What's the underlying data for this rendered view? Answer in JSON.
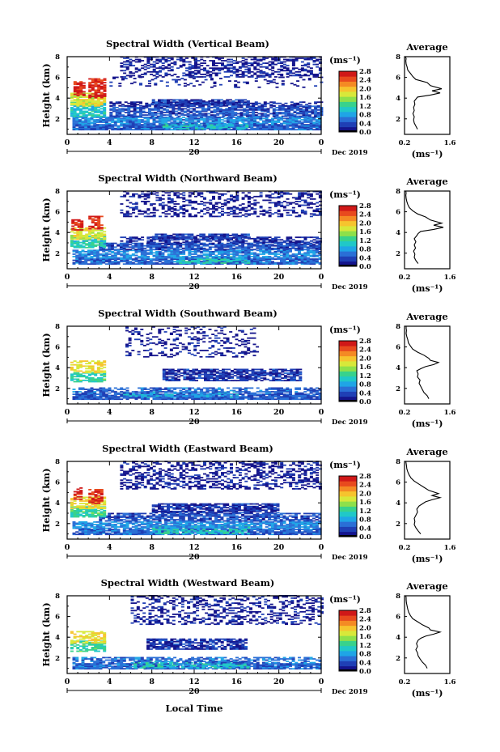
{
  "colors": {
    "colormap": [
      "#14148c",
      "#1f3fb5",
      "#2a6fd6",
      "#1fa5e6",
      "#20c8c8",
      "#38d28c",
      "#8ee04a",
      "#d8e83a",
      "#f6c42e",
      "#f48a24",
      "#e84a1e",
      "#d01818"
    ],
    "background": "#ffffff",
    "axis": "#000000"
  },
  "shared": {
    "xlabel": "Local Time",
    "date_label": "20",
    "month_year_label": "Dec 2019",
    "ylabel": "Height (km)",
    "unit_label": "(ms⁻¹)",
    "avg_title": "Average",
    "avg_xlabel": "(ms⁻¹)"
  },
  "chart_data": [
    {
      "type": "heatmap",
      "title": "Spectral Width (Vertical Beam)",
      "xlabel": "",
      "ylabel": "Height (km)",
      "x_ticks": [
        "0",
        "4",
        "8",
        "12",
        "16",
        "20",
        "0"
      ],
      "xlim": [
        0,
        24
      ],
      "y_ticks": [
        "2",
        "4",
        "6",
        "8"
      ],
      "ylim": [
        0.5,
        8
      ],
      "colorbar": {
        "label": "(ms⁻¹)",
        "ticks": [
          "0.0",
          "0.4",
          "0.8",
          "1.2",
          "1.6",
          "2.0",
          "2.4",
          "2.8"
        ],
        "range": [
          0,
          3.0
        ]
      },
      "features": [
        {
          "t0": 0.5,
          "t1": 24,
          "h0": 0.9,
          "h1": 1.5,
          "value": 0.55,
          "density": 0.95
        },
        {
          "t0": 9,
          "t1": 17,
          "h0": 1.0,
          "h1": 1.5,
          "value": 1.1,
          "density": 0.6
        },
        {
          "t0": 0.5,
          "t1": 24,
          "h0": 1.5,
          "h1": 2.2,
          "value": 0.7,
          "density": 0.85
        },
        {
          "t0": 4,
          "t1": 24,
          "h0": 2.2,
          "h1": 3.2,
          "value": 0.45,
          "density": 0.75
        },
        {
          "t0": 4,
          "t1": 24,
          "h0": 3.2,
          "h1": 3.6,
          "value": 0.2,
          "density": 0.55
        },
        {
          "t0": 8,
          "t1": 17,
          "h0": 3.3,
          "h1": 3.9,
          "value": 0.35,
          "density": 0.8
        },
        {
          "t0": 0.3,
          "t1": 3.5,
          "h0": 2.2,
          "h1": 3.6,
          "value": 1.1,
          "density": 0.85
        },
        {
          "t0": 0.3,
          "t1": 3.5,
          "h0": 3.2,
          "h1": 4.5,
          "value": 1.9,
          "density": 0.8
        },
        {
          "t0": 0.6,
          "t1": 1.6,
          "h0": 4.2,
          "h1": 5.6,
          "value": 2.8,
          "density": 0.7
        },
        {
          "t0": 2.0,
          "t1": 3.5,
          "h0": 4.0,
          "h1": 5.9,
          "value": 2.8,
          "density": 0.75
        },
        {
          "t0": 5,
          "t1": 24,
          "h0": 6.0,
          "h1": 8.0,
          "value": 0.15,
          "density": 0.45
        },
        {
          "t0": 4,
          "t1": 24,
          "h0": 5.0,
          "h1": 6.0,
          "value": 0.15,
          "density": 0.15
        }
      ],
      "average": {
        "xlim": [
          0.2,
          1.6
        ],
        "x_ticks": [
          "0.2",
          "1.6"
        ],
        "y_ticks": [
          "2",
          "4",
          "6",
          "8"
        ],
        "ylim": [
          0.5,
          8
        ],
        "x": [
          0.6,
          0.55,
          0.5,
          0.48,
          0.5,
          0.46,
          0.5,
          0.48,
          0.52,
          0.5,
          0.55,
          0.6,
          1.0,
          1.3,
          1.05,
          1.35,
          1.0,
          0.9,
          0.55,
          0.45,
          0.38,
          0.3,
          0.28,
          0.25,
          0.24,
          0.25,
          0.23,
          0.24
        ],
        "y": [
          1.0,
          1.3,
          1.6,
          1.9,
          2.2,
          2.5,
          2.8,
          3.1,
          3.4,
          3.7,
          3.9,
          4.1,
          4.3,
          4.5,
          4.7,
          4.9,
          5.2,
          5.5,
          5.8,
          6.1,
          6.4,
          6.7,
          7.0,
          7.3,
          7.6,
          7.8,
          8.0,
          8.0
        ]
      }
    },
    {
      "type": "heatmap",
      "title": "Spectral Width (Northward Beam)",
      "xlabel": "",
      "ylabel": "Height (km)",
      "x_ticks": [
        "0",
        "4",
        "8",
        "12",
        "16",
        "20",
        "0"
      ],
      "xlim": [
        0,
        24
      ],
      "y_ticks": [
        "2",
        "4",
        "6",
        "8"
      ],
      "ylim": [
        0.5,
        8
      ],
      "colorbar": {
        "label": "(ms⁻¹)",
        "ticks": [
          "0.0",
          "0.4",
          "0.8",
          "1.2",
          "1.6",
          "2.0",
          "2.4",
          "2.8"
        ],
        "range": [
          0,
          3.0
        ]
      },
      "features": [
        {
          "t0": 0.5,
          "t1": 24,
          "h0": 0.9,
          "h1": 1.5,
          "value": 0.55,
          "density": 0.9
        },
        {
          "t0": 10,
          "t1": 17,
          "h0": 1.0,
          "h1": 1.7,
          "value": 1.2,
          "density": 0.6
        },
        {
          "t0": 0.5,
          "t1": 24,
          "h0": 1.5,
          "h1": 2.3,
          "value": 0.7,
          "density": 0.8
        },
        {
          "t0": 3,
          "t1": 24,
          "h0": 2.3,
          "h1": 3.0,
          "value": 0.45,
          "density": 0.8
        },
        {
          "t0": 5,
          "t1": 24,
          "h0": 3.0,
          "h1": 3.5,
          "value": 0.25,
          "density": 0.6
        },
        {
          "t0": 8,
          "t1": 17,
          "h0": 3.3,
          "h1": 3.8,
          "value": 0.35,
          "density": 0.8
        },
        {
          "t0": 0.3,
          "t1": 3.5,
          "h0": 2.5,
          "h1": 3.6,
          "value": 1.2,
          "density": 0.8
        },
        {
          "t0": 0.3,
          "t1": 3.5,
          "h0": 3.3,
          "h1": 4.4,
          "value": 1.9,
          "density": 0.75
        },
        {
          "t0": 0.4,
          "t1": 1.4,
          "h0": 4.2,
          "h1": 5.2,
          "value": 2.8,
          "density": 0.7
        },
        {
          "t0": 2.0,
          "t1": 3.2,
          "h0": 4.3,
          "h1": 5.6,
          "value": 2.8,
          "density": 0.65
        },
        {
          "t0": 5,
          "t1": 24,
          "h0": 5.5,
          "h1": 8.0,
          "value": 0.15,
          "density": 0.35
        }
      ],
      "average": {
        "xlim": [
          0.2,
          1.6
        ],
        "x_ticks": [
          "0.2",
          "1.6"
        ],
        "y_ticks": [
          "2",
          "4",
          "6",
          "8"
        ],
        "ylim": [
          0.5,
          8
        ],
        "x": [
          0.62,
          0.55,
          0.5,
          0.52,
          0.48,
          0.54,
          0.5,
          0.55,
          0.5,
          0.58,
          0.62,
          0.7,
          1.1,
          1.4,
          1.1,
          1.35,
          1.0,
          0.85,
          0.6,
          0.45,
          0.35,
          0.3,
          0.27,
          0.25,
          0.24,
          0.25,
          0.24,
          0.24
        ],
        "y": [
          1.0,
          1.3,
          1.6,
          1.9,
          2.2,
          2.5,
          2.8,
          3.1,
          3.4,
          3.7,
          3.9,
          4.1,
          4.3,
          4.5,
          4.7,
          4.9,
          5.2,
          5.5,
          5.8,
          6.1,
          6.4,
          6.7,
          7.0,
          7.3,
          7.6,
          7.8,
          8.0,
          8.0
        ]
      }
    },
    {
      "type": "heatmap",
      "title": "Spectral Width (Southward Beam)",
      "xlabel": "",
      "ylabel": "Height (km)",
      "x_ticks": [
        "0",
        "4",
        "8",
        "12",
        "16",
        "20",
        "0"
      ],
      "xlim": [
        0,
        24
      ],
      "y_ticks": [
        "2",
        "4",
        "6",
        "8"
      ],
      "ylim": [
        0.5,
        8
      ],
      "colorbar": {
        "label": "(ms⁻¹)",
        "ticks": [
          "0.0",
          "0.4",
          "0.8",
          "1.2",
          "1.6",
          "2.0",
          "2.4",
          "2.8"
        ],
        "range": [
          0,
          3.0
        ]
      },
      "features": [
        {
          "t0": 0.5,
          "t1": 24,
          "h0": 0.9,
          "h1": 1.5,
          "value": 0.5,
          "density": 0.9
        },
        {
          "t0": 5,
          "t1": 16,
          "h0": 1.1,
          "h1": 1.6,
          "value": 0.9,
          "density": 0.6
        },
        {
          "t0": 0.5,
          "t1": 24,
          "h0": 1.5,
          "h1": 2.0,
          "value": 0.55,
          "density": 0.6
        },
        {
          "t0": 9,
          "t1": 22,
          "h0": 2.7,
          "h1": 3.9,
          "value": 0.3,
          "density": 0.75
        },
        {
          "t0": 0.3,
          "t1": 3.5,
          "h0": 2.6,
          "h1": 3.5,
          "value": 1.3,
          "density": 0.7
        },
        {
          "t0": 0.3,
          "t1": 3.5,
          "h0": 3.5,
          "h1": 4.6,
          "value": 2.0,
          "density": 0.6
        },
        {
          "t0": 5.5,
          "t1": 18,
          "h0": 5.0,
          "h1": 8.0,
          "value": 0.15,
          "density": 0.25
        }
      ],
      "average": {
        "xlim": [
          0.2,
          1.6
        ],
        "x_ticks": [
          "0.2",
          "1.6"
        ],
        "y_ticks": [
          "2",
          "4",
          "6",
          "8"
        ],
        "ylim": [
          0.5,
          8
        ],
        "x": [
          0.95,
          0.9,
          0.8,
          0.75,
          0.7,
          0.65,
          0.68,
          0.6,
          0.62,
          0.58,
          0.7,
          0.85,
          1.1,
          1.25,
          1.0,
          0.95,
          0.8,
          0.6,
          0.45,
          0.38,
          0.32,
          0.3,
          0.27,
          0.25,
          0.26,
          0.25,
          0.25,
          0.25
        ],
        "y": [
          1.0,
          1.3,
          1.6,
          1.9,
          2.2,
          2.5,
          2.8,
          3.1,
          3.4,
          3.7,
          3.9,
          4.1,
          4.3,
          4.5,
          4.7,
          4.9,
          5.2,
          5.5,
          5.8,
          6.1,
          6.4,
          6.7,
          7.0,
          7.3,
          7.6,
          7.8,
          8.0,
          8.0
        ]
      }
    },
    {
      "type": "heatmap",
      "title": "Spectral Width (Eastward Beam)",
      "xlabel": "",
      "ylabel": "Height (km)",
      "x_ticks": [
        "0",
        "4",
        "8",
        "12",
        "16",
        "20",
        "0"
      ],
      "xlim": [
        0,
        24
      ],
      "y_ticks": [
        "2",
        "4",
        "6",
        "8"
      ],
      "ylim": [
        0.5,
        8
      ],
      "colorbar": {
        "label": "(ms⁻¹)",
        "ticks": [
          "0.0",
          "0.4",
          "0.8",
          "1.2",
          "1.6",
          "2.0",
          "2.4",
          "2.8"
        ],
        "range": [
          0,
          3.0
        ]
      },
      "features": [
        {
          "t0": 0.5,
          "t1": 24,
          "h0": 0.9,
          "h1": 1.5,
          "value": 0.55,
          "density": 0.9
        },
        {
          "t0": 8,
          "t1": 17,
          "h0": 1.0,
          "h1": 1.8,
          "value": 1.2,
          "density": 0.6
        },
        {
          "t0": 0.5,
          "t1": 24,
          "h0": 1.5,
          "h1": 2.2,
          "value": 0.75,
          "density": 0.8
        },
        {
          "t0": 3,
          "t1": 24,
          "h0": 2.2,
          "h1": 3.0,
          "value": 0.45,
          "density": 0.75
        },
        {
          "t0": 8,
          "t1": 20,
          "h0": 3.0,
          "h1": 3.9,
          "value": 0.3,
          "density": 0.75
        },
        {
          "t0": 0.3,
          "t1": 3.5,
          "h0": 2.6,
          "h1": 3.6,
          "value": 1.3,
          "density": 0.8
        },
        {
          "t0": 0.3,
          "t1": 3.5,
          "h0": 3.4,
          "h1": 4.6,
          "value": 2.0,
          "density": 0.75
        },
        {
          "t0": 0.6,
          "t1": 1.4,
          "h0": 4.3,
          "h1": 5.5,
          "value": 2.8,
          "density": 0.6
        },
        {
          "t0": 2.0,
          "t1": 3.3,
          "h0": 3.9,
          "h1": 5.3,
          "value": 2.8,
          "density": 0.7
        },
        {
          "t0": 5,
          "t1": 24,
          "h0": 5.3,
          "h1": 8.0,
          "value": 0.15,
          "density": 0.4
        }
      ],
      "average": {
        "xlim": [
          0.2,
          1.6
        ],
        "x_ticks": [
          "0.2",
          "1.6"
        ],
        "y_ticks": [
          "2",
          "4",
          "6",
          "8"
        ],
        "ylim": [
          0.5,
          8
        ],
        "x": [
          0.7,
          0.62,
          0.55,
          0.5,
          0.52,
          0.5,
          0.55,
          0.6,
          0.58,
          0.65,
          0.75,
          0.85,
          1.05,
          1.3,
          1.05,
          1.25,
          0.95,
          0.8,
          0.65,
          0.5,
          0.4,
          0.34,
          0.3,
          0.27,
          0.26,
          0.25,
          0.24,
          0.24
        ],
        "y": [
          1.0,
          1.3,
          1.6,
          1.9,
          2.2,
          2.5,
          2.8,
          3.1,
          3.4,
          3.7,
          3.9,
          4.1,
          4.3,
          4.5,
          4.7,
          4.9,
          5.2,
          5.5,
          5.8,
          6.1,
          6.4,
          6.7,
          7.0,
          7.3,
          7.6,
          7.8,
          8.0,
          8.0
        ]
      }
    },
    {
      "type": "heatmap",
      "title": "Spectral Width (Westward Beam)",
      "xlabel": "Local Time",
      "ylabel": "Height (km)",
      "x_ticks": [
        "0",
        "4",
        "8",
        "12",
        "16",
        "20",
        "0"
      ],
      "xlim": [
        0,
        24
      ],
      "y_ticks": [
        "2",
        "4",
        "6",
        "8"
      ],
      "ylim": [
        0.5,
        8
      ],
      "colorbar": {
        "label": "(ms⁻¹)",
        "ticks": [
          "0.0",
          "0.4",
          "0.8",
          "1.2",
          "1.6",
          "2.0",
          "2.4",
          "2.8"
        ],
        "range": [
          0,
          3.0
        ]
      },
      "features": [
        {
          "t0": 0.5,
          "t1": 24,
          "h0": 0.9,
          "h1": 1.5,
          "value": 0.55,
          "density": 0.9
        },
        {
          "t0": 6,
          "t1": 17,
          "h0": 1.0,
          "h1": 1.7,
          "value": 1.1,
          "density": 0.55
        },
        {
          "t0": 0.5,
          "t1": 24,
          "h0": 1.5,
          "h1": 2.0,
          "value": 0.6,
          "density": 0.6
        },
        {
          "t0": 7.5,
          "t1": 17,
          "h0": 2.8,
          "h1": 3.8,
          "value": 0.3,
          "density": 0.75
        },
        {
          "t0": 0.3,
          "t1": 3.5,
          "h0": 2.6,
          "h1": 3.6,
          "value": 1.3,
          "density": 0.7
        },
        {
          "t0": 0.3,
          "t1": 3.5,
          "h0": 3.4,
          "h1": 4.6,
          "value": 2.0,
          "density": 0.6
        },
        {
          "t0": 6,
          "t1": 24,
          "h0": 5.2,
          "h1": 8.0,
          "value": 0.15,
          "density": 0.35
        }
      ],
      "average": {
        "xlim": [
          0.2,
          1.6
        ],
        "x_ticks": [
          "0.2",
          "1.6"
        ],
        "y_ticks": [
          "2",
          "4",
          "6",
          "8"
        ],
        "ylim": [
          0.5,
          8
        ],
        "x": [
          0.9,
          0.85,
          0.75,
          0.68,
          0.62,
          0.6,
          0.55,
          0.6,
          0.57,
          0.62,
          0.7,
          0.85,
          1.1,
          1.3,
          1.0,
          0.95,
          0.75,
          0.6,
          0.45,
          0.38,
          0.33,
          0.3,
          0.28,
          0.26,
          0.25,
          0.25,
          0.24,
          0.24
        ],
        "y": [
          1.0,
          1.3,
          1.6,
          1.9,
          2.2,
          2.5,
          2.8,
          3.1,
          3.4,
          3.7,
          3.9,
          4.1,
          4.3,
          4.5,
          4.7,
          4.9,
          5.2,
          5.5,
          5.8,
          6.1,
          6.4,
          6.7,
          7.0,
          7.3,
          7.6,
          7.8,
          8.0,
          8.0
        ]
      }
    }
  ]
}
